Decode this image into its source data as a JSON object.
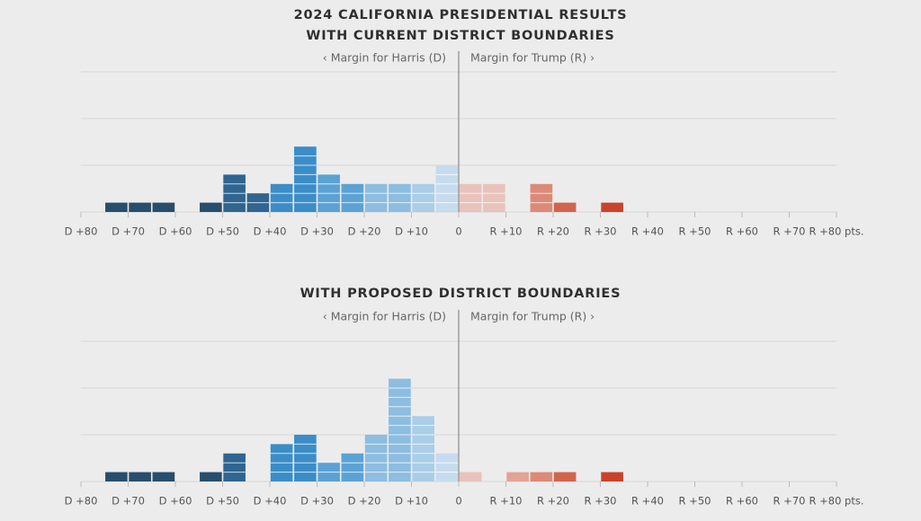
{
  "chart_data": [
    {
      "type": "histogram",
      "title": [
        "2024 CALIFORNIA PRESIDENTIAL RESULTS",
        "WITH CURRENT DISTRICT BOUNDARIES"
      ],
      "annotations": [
        "‹ Margin for Harris (D)",
        "Margin for Trump (R) ›"
      ],
      "bins": [
        -75,
        -70,
        -65,
        -60,
        -55,
        -50,
        -45,
        -40,
        -35,
        -30,
        -25,
        -20,
        -15,
        -10,
        -5,
        0,
        5,
        10,
        15,
        20,
        25,
        30,
        35
      ],
      "values": [
        1,
        1,
        1,
        0,
        1,
        4,
        2,
        3,
        7,
        4,
        3,
        3,
        3,
        3,
        5,
        3,
        3,
        0,
        3,
        1,
        0,
        1
      ],
      "colors": [
        "#274e6c",
        "#274e6c",
        "#274e6c",
        "#274e6c",
        "#274e6c",
        "#2f6590",
        "#2f6590",
        "#3b8dc8",
        "#3b8dc8",
        "#5ba2d4",
        "#5ba2d4",
        "#8dbde0",
        "#8dbde0",
        "#aacde8",
        "#c6dcee",
        "#e8c3bc",
        "#e8c3bc",
        "#e0a496",
        "#dc8a77",
        "#d1654c",
        "#c9432a",
        "#c9432a"
      ],
      "xlim": [
        -80,
        80
      ],
      "xticks": [
        {
          "value": -80,
          "label": "D +80"
        },
        {
          "value": -70,
          "label": "D +70"
        },
        {
          "value": -60,
          "label": "D +60"
        },
        {
          "value": -50,
          "label": "D +50"
        },
        {
          "value": -40,
          "label": "D +40"
        },
        {
          "value": -30,
          "label": "D +30"
        },
        {
          "value": -20,
          "label": "D +20"
        },
        {
          "value": -10,
          "label": "D +10"
        },
        0,
        {
          "value": 10,
          "label": "R +10"
        },
        {
          "value": 20,
          "label": "R +20"
        },
        {
          "value": 30,
          "label": "R +30"
        },
        {
          "value": 40,
          "label": "R +40"
        },
        {
          "value": 50,
          "label": "R +50"
        },
        {
          "value": 60,
          "label": "R +60"
        },
        {
          "value": 70,
          "label": "R +70"
        },
        {
          "value": 80,
          "label": "R +80 pts."
        }
      ],
      "ylim": [
        0,
        15
      ],
      "yticks": [
        0,
        5,
        10,
        15
      ],
      "grid": true
    },
    {
      "type": "histogram",
      "title": [
        "WITH PROPOSED DISTRICT BOUNDARIES"
      ],
      "annotations": [
        "‹ Margin for Harris (D)",
        "Margin for Trump (R) ›"
      ],
      "bins": [
        -75,
        -70,
        -65,
        -60,
        -55,
        -50,
        -45,
        -40,
        -35,
        -30,
        -25,
        -20,
        -15,
        -10,
        -5,
        0,
        5,
        10,
        15,
        20,
        25,
        30,
        35
      ],
      "values": [
        1,
        1,
        1,
        0,
        1,
        3,
        0,
        4,
        5,
        2,
        3,
        5,
        11,
        7,
        3,
        1,
        0,
        1,
        1,
        1,
        0,
        1
      ],
      "colors": [
        "#274e6c",
        "#274e6c",
        "#274e6c",
        "#274e6c",
        "#274e6c",
        "#2f6590",
        "#2f6590",
        "#3b8dc8",
        "#3b8dc8",
        "#5ba2d4",
        "#5ba2d4",
        "#8dbde0",
        "#8dbde0",
        "#aacde8",
        "#c6dcee",
        "#e8c3bc",
        "#e8c3bc",
        "#e0a496",
        "#dc8a77",
        "#d1654c",
        "#c9432a",
        "#c9432a"
      ],
      "xlim": [
        -80,
        80
      ],
      "xticks": [
        {
          "value": -80,
          "label": "D +80"
        },
        {
          "value": -70,
          "label": "D +70"
        },
        {
          "value": -60,
          "label": "D +60"
        },
        {
          "value": -50,
          "label": "D +50"
        },
        {
          "value": -40,
          "label": "D +40"
        },
        {
          "value": -30,
          "label": "D +30"
        },
        {
          "value": -20,
          "label": "D +20"
        },
        {
          "value": -10,
          "label": "D +10"
        },
        0,
        {
          "value": 10,
          "label": "R +10"
        },
        {
          "value": 20,
          "label": "R +20"
        },
        {
          "value": 30,
          "label": "R +30"
        },
        {
          "value": 40,
          "label": "R +40"
        },
        {
          "value": 50,
          "label": "R +50"
        },
        {
          "value": 60,
          "label": "R +60"
        },
        {
          "value": 70,
          "label": "R +70"
        },
        {
          "value": 80,
          "label": "R +80 pts."
        }
      ],
      "ylim": [
        0,
        15
      ],
      "yticks": [
        0,
        5,
        10,
        15
      ],
      "grid": true
    }
  ]
}
